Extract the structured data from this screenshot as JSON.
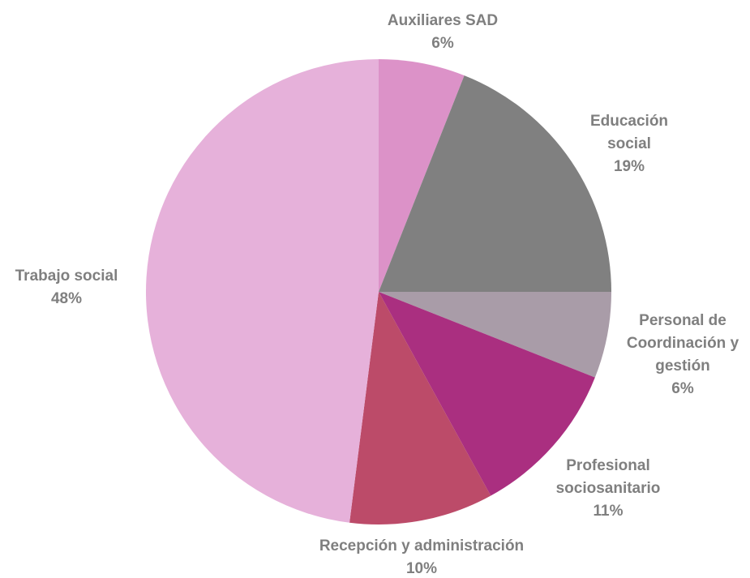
{
  "chart_data": {
    "type": "pie",
    "categories": [
      "Auxiliares SAD",
      "Educación social",
      "Personal de Coordinación y gestión",
      "Profesional sociosanitario",
      "Recepción y administración",
      "Trabajo social"
    ],
    "values": [
      6,
      19,
      6,
      11,
      10,
      48
    ],
    "value_labels": [
      "6%",
      "19%",
      "6%",
      "11%",
      "10%",
      "48%"
    ],
    "colors": [
      "#dc92c8",
      "#808080",
      "#a99ca8",
      "#aa2f80",
      "#bc4b69",
      "#e6b1da"
    ]
  }
}
